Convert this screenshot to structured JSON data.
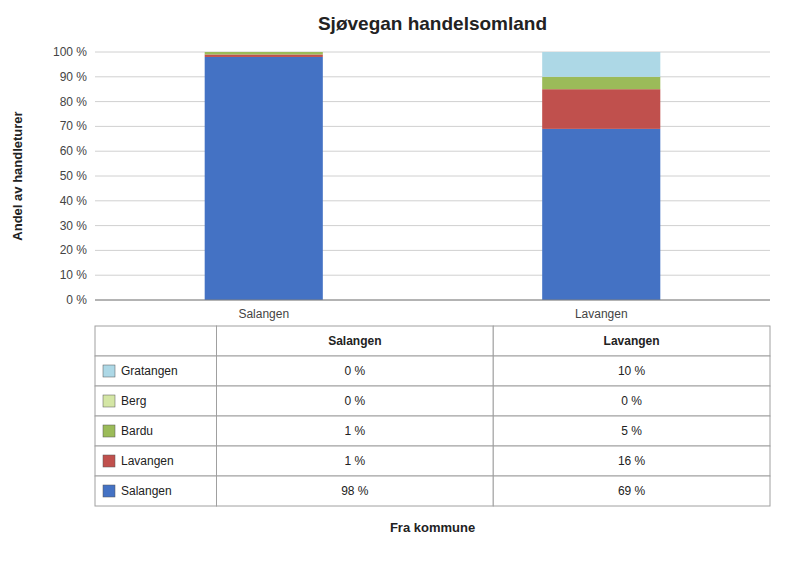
{
  "chart_data": {
    "type": "bar",
    "stacked": true,
    "title": "Sjøvegan handelsomland",
    "xlabel": "Fra kommune",
    "ylabel": "Andel av handleturer",
    "categories": [
      "Salangen",
      "Lavangen"
    ],
    "series": [
      {
        "name": "Salangen",
        "color": "#4472C4",
        "values": [
          98,
          69
        ],
        "value_labels": [
          "98 %",
          "69 %"
        ]
      },
      {
        "name": "Lavangen",
        "color": "#C0504D",
        "values": [
          1,
          16
        ],
        "value_labels": [
          "1 %",
          "16 %"
        ]
      },
      {
        "name": "Bardu",
        "color": "#9BBB59",
        "values": [
          1,
          5
        ],
        "value_labels": [
          "1 %",
          "5 %"
        ]
      },
      {
        "name": "Berg",
        "color": "#D4E6A5",
        "values": [
          0,
          0
        ],
        "value_labels": [
          "0 %",
          "0 %"
        ]
      },
      {
        "name": "Gratangen",
        "color": "#ADD8E6",
        "values": [
          0,
          10
        ],
        "value_labels": [
          "0 %",
          "10 %"
        ]
      }
    ],
    "ylim": [
      0,
      100
    ],
    "yticks": [
      {
        "value": 0,
        "label": "0 %"
      },
      {
        "value": 10,
        "label": "10 %"
      },
      {
        "value": 20,
        "label": "20 %"
      },
      {
        "value": 30,
        "label": "30 %"
      },
      {
        "value": 40,
        "label": "40 %"
      },
      {
        "value": 50,
        "label": "50 %"
      },
      {
        "value": 60,
        "label": "60 %"
      },
      {
        "value": 70,
        "label": "70 %"
      },
      {
        "value": 80,
        "label": "80 %"
      },
      {
        "value": 90,
        "label": "90 %"
      },
      {
        "value": 100,
        "label": "100 %"
      }
    ],
    "grid": true
  }
}
